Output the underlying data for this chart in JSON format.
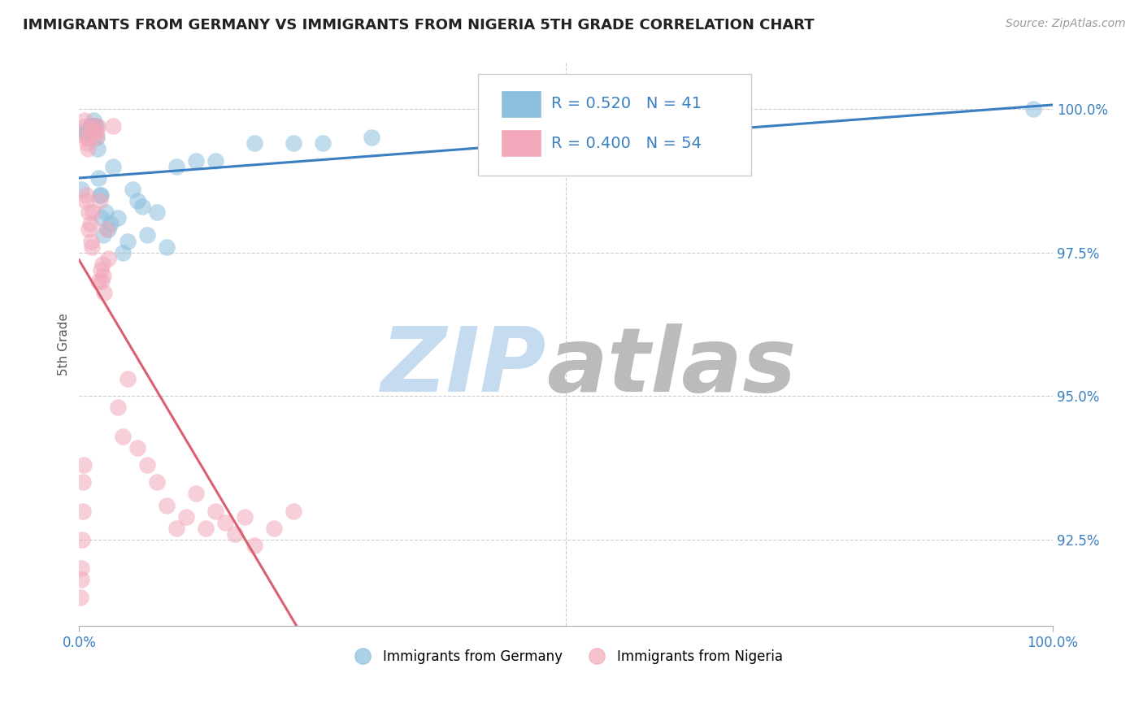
{
  "title": "IMMIGRANTS FROM GERMANY VS IMMIGRANTS FROM NIGERIA 5TH GRADE CORRELATION CHART",
  "source": "Source: ZipAtlas.com",
  "ylabel": "5th Grade",
  "ytick_values": [
    92.5,
    95.0,
    97.5,
    100.0
  ],
  "legend_blue_label": "Immigrants from Germany",
  "legend_pink_label": "Immigrants from Nigeria",
  "R_blue": 0.52,
  "N_blue": 41,
  "R_pink": 0.4,
  "N_pink": 54,
  "blue_color": "#8BBFDE",
  "pink_color": "#F2A8BA",
  "blue_line_color": "#3A7FC1",
  "pink_line_color": "#D96070",
  "watermark_zip_color": "#C5DCF0",
  "watermark_atlas_color": "#BBBBBB",
  "blue_scatter_x": [
    0.2,
    0.4,
    0.6,
    0.8,
    1.0,
    1.1,
    1.2,
    1.3,
    1.4,
    1.5,
    1.6,
    1.7,
    1.8,
    1.9,
    2.0,
    2.1,
    2.2,
    2.3,
    2.5,
    2.7,
    3.0,
    3.2,
    3.5,
    4.0,
    4.5,
    5.0,
    5.5,
    6.0,
    6.5,
    7.0,
    8.0,
    9.0,
    10.0,
    12.0,
    14.0,
    18.0,
    22.0,
    25.0,
    30.0,
    55.0,
    98.0
  ],
  "blue_scatter_y": [
    98.6,
    99.6,
    99.6,
    99.6,
    99.6,
    99.7,
    99.7,
    99.7,
    99.7,
    99.8,
    99.7,
    99.7,
    99.5,
    99.3,
    98.8,
    98.5,
    98.5,
    98.1,
    97.8,
    98.2,
    97.9,
    98.0,
    99.0,
    98.1,
    97.5,
    97.7,
    98.6,
    98.4,
    98.3,
    97.8,
    98.2,
    97.6,
    99.0,
    99.1,
    99.1,
    99.4,
    99.4,
    99.4,
    99.5,
    99.8,
    100.0
  ],
  "pink_scatter_x": [
    0.15,
    0.2,
    0.25,
    0.3,
    0.35,
    0.4,
    0.5,
    0.55,
    0.6,
    0.65,
    0.7,
    0.75,
    0.8,
    0.85,
    0.9,
    0.95,
    1.0,
    1.1,
    1.2,
    1.3,
    1.4,
    1.5,
    1.6,
    1.7,
    1.8,
    1.9,
    2.0,
    2.1,
    2.2,
    2.3,
    2.4,
    2.5,
    2.6,
    2.8,
    3.0,
    3.5,
    4.0,
    4.5,
    5.0,
    6.0,
    7.0,
    8.0,
    9.0,
    10.0,
    11.0,
    12.0,
    13.0,
    14.0,
    15.0,
    16.0,
    17.0,
    18.0,
    20.0,
    22.0
  ],
  "pink_scatter_y": [
    91.5,
    92.0,
    91.8,
    92.5,
    93.0,
    93.5,
    93.8,
    99.8,
    99.7,
    98.4,
    98.5,
    99.5,
    99.4,
    99.3,
    99.5,
    98.2,
    97.9,
    98.0,
    97.7,
    97.6,
    98.2,
    99.7,
    99.6,
    99.5,
    99.6,
    99.7,
    97.0,
    98.4,
    97.2,
    97.0,
    97.3,
    97.1,
    96.8,
    97.9,
    97.4,
    99.7,
    94.8,
    94.3,
    95.3,
    94.1,
    93.8,
    93.5,
    93.1,
    92.7,
    92.9,
    93.3,
    92.7,
    93.0,
    92.8,
    92.6,
    92.9,
    92.4,
    92.7,
    93.0
  ],
  "xlim": [
    0,
    100
  ],
  "ylim": [
    91.0,
    100.8
  ],
  "xgridline_at": 50
}
